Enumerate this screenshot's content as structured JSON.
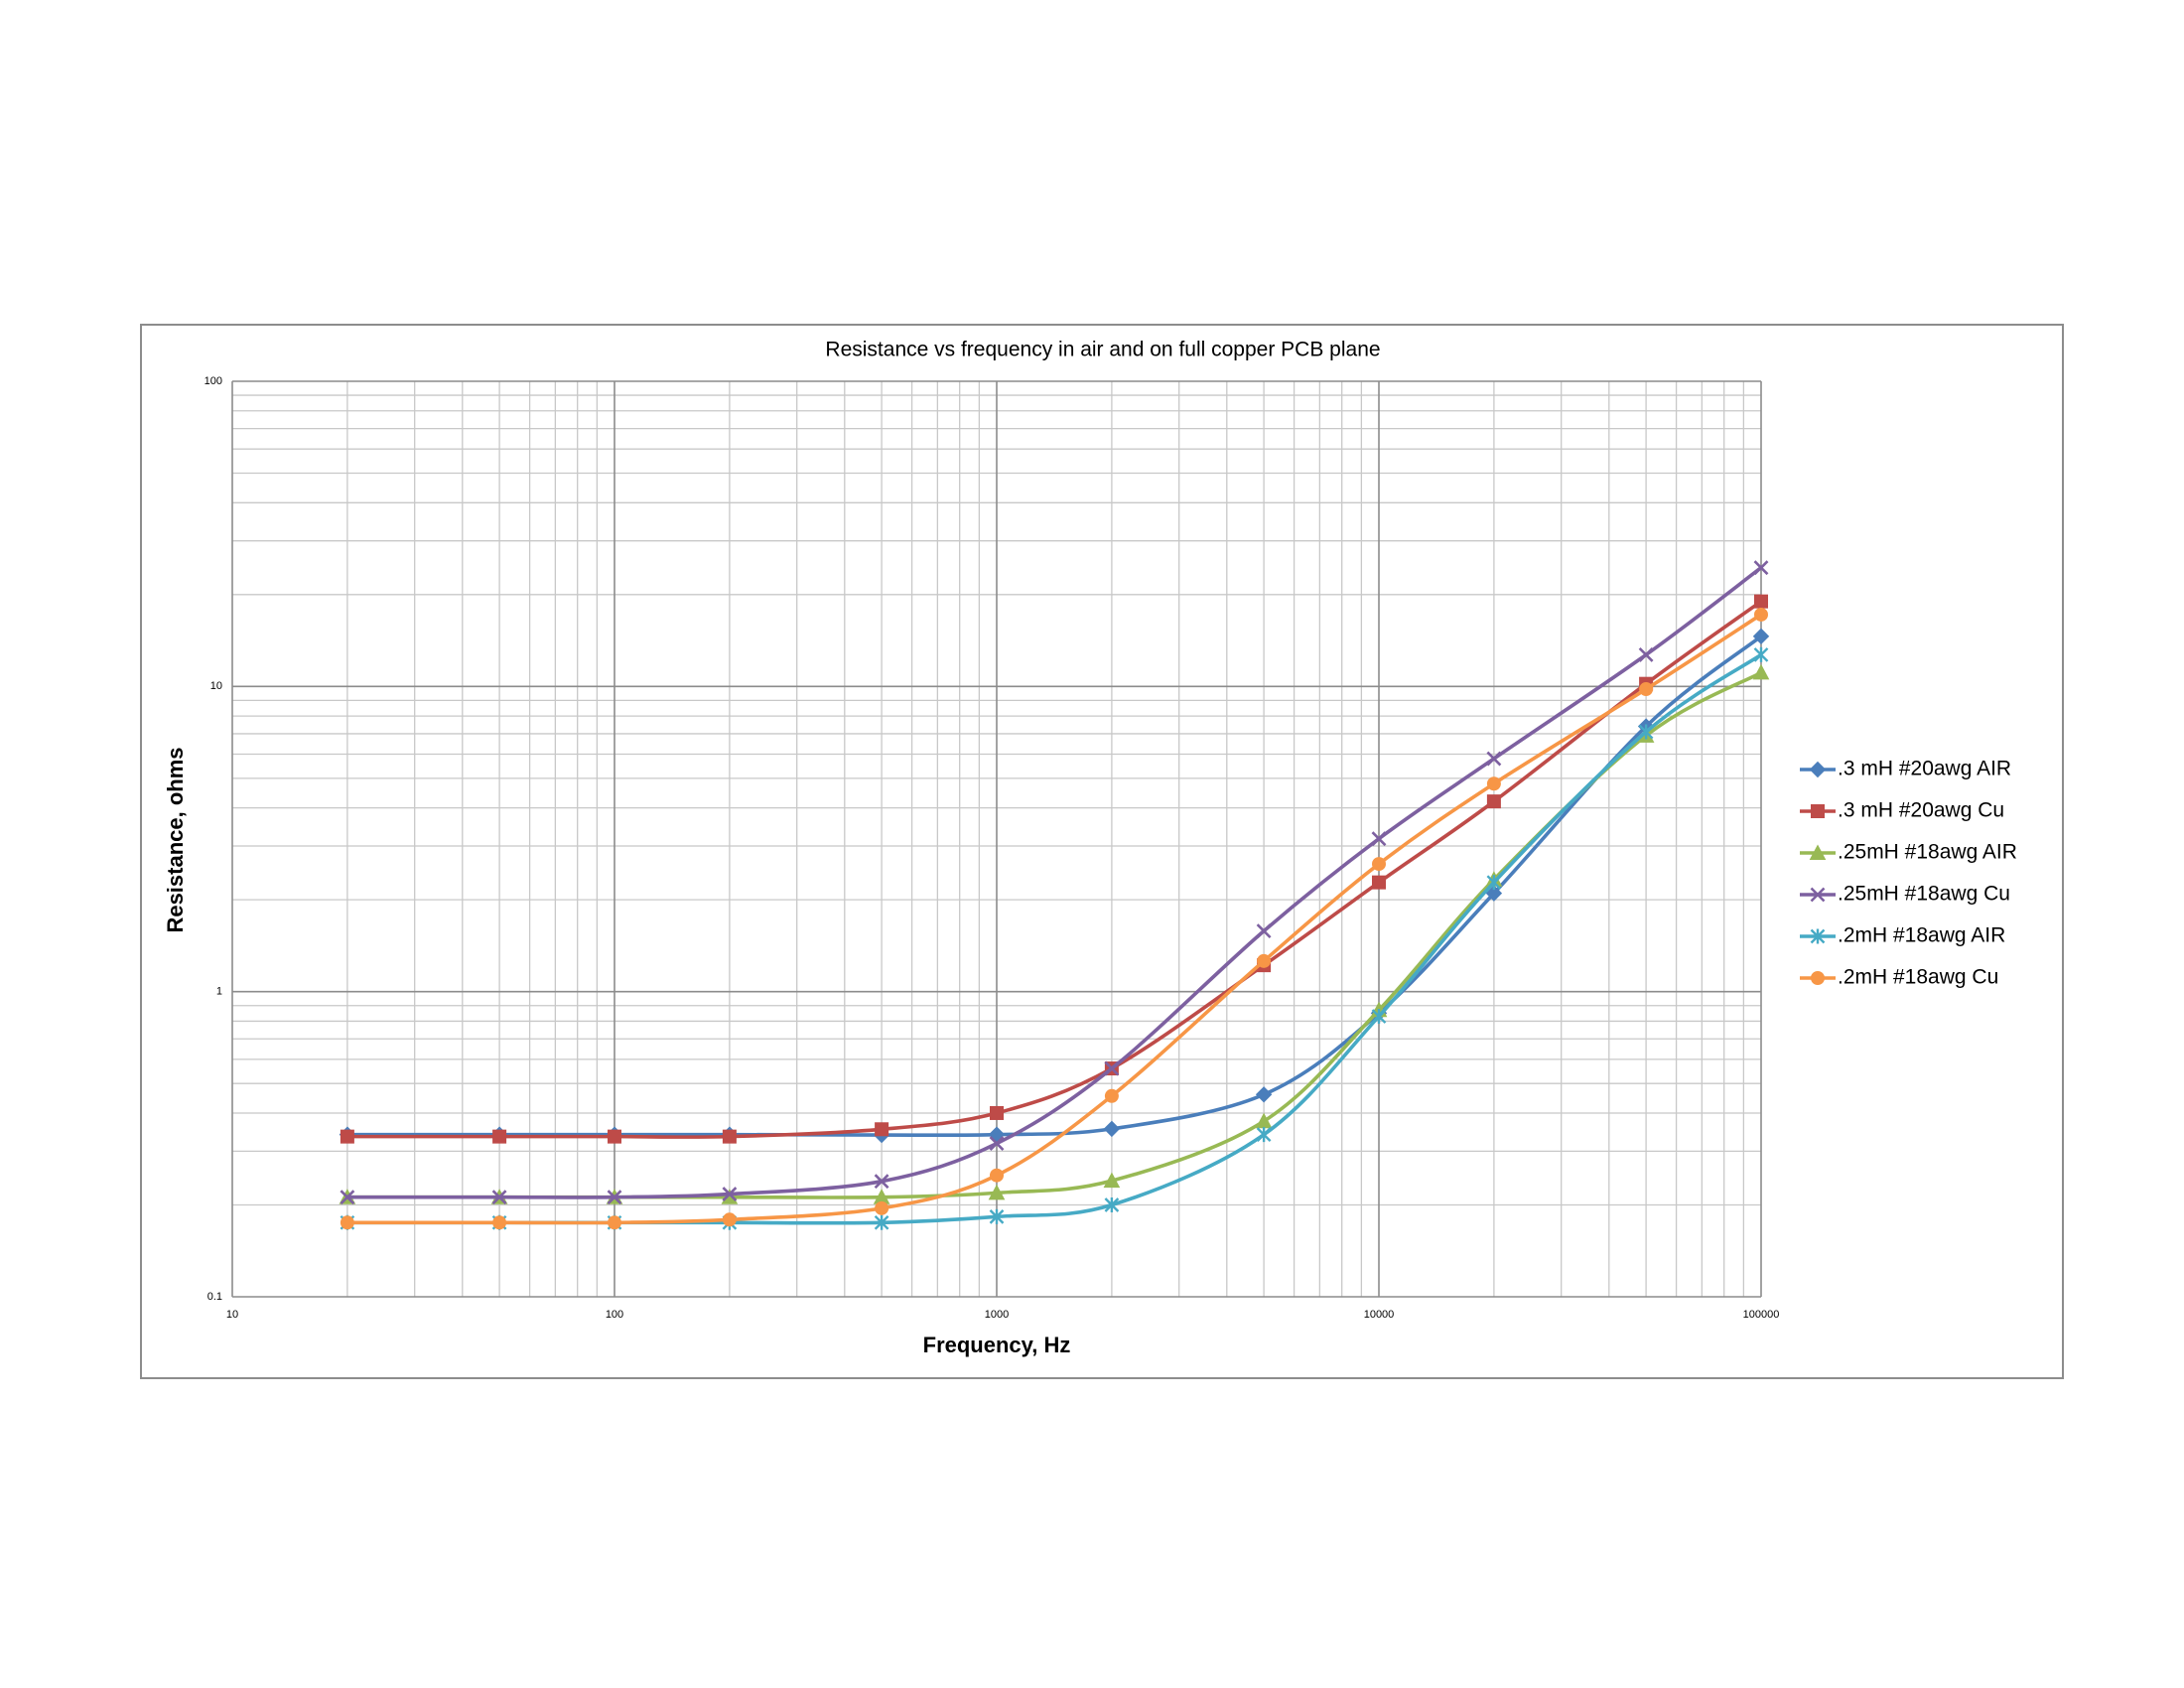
{
  "chart_data": {
    "type": "line",
    "title": "Resistance vs frequency in air and on full copper PCB plane",
    "x_label": "Frequency, Hz",
    "y_label": "Resistance, ohms",
    "x_scale": "log",
    "y_scale": "log",
    "grid": true,
    "minor_grid": true,
    "smooth": true,
    "legend": "right",
    "xlim": [
      10,
      100000
    ],
    "xticks": [
      10,
      100,
      1000,
      10000,
      100000
    ],
    "ylim": [
      0.1,
      100
    ],
    "yticks": [
      0.1,
      1,
      10,
      100
    ],
    "x": [
      20,
      50,
      100,
      200,
      500,
      1000,
      2000,
      5000,
      10000,
      20000,
      50000,
      100000
    ],
    "series": [
      {
        "name": ".3 mH #20awg AIR",
        "color": "#4a7ebb",
        "marker": "diamond",
        "values": [
          0.34,
          0.34,
          0.34,
          0.34,
          0.339,
          0.34,
          0.355,
          0.46,
          0.85,
          2.1,
          7.4,
          14.6
        ]
      },
      {
        "name": ".3 mH #20awg Cu",
        "color": "#be4b48",
        "marker": "square",
        "values": [
          0.335,
          0.335,
          0.335,
          0.335,
          0.354,
          0.4,
          0.56,
          1.22,
          2.28,
          4.2,
          10.2,
          19.0
        ]
      },
      {
        "name": ".25mH #18awg AIR",
        "color": "#98b954",
        "marker": "triangle",
        "values": [
          0.212,
          0.212,
          0.212,
          0.212,
          0.212,
          0.219,
          0.24,
          0.376,
          0.87,
          2.33,
          6.9,
          11.1
        ]
      },
      {
        "name": ".25mH #18awg Cu",
        "color": "#7d60a0",
        "marker": "x",
        "values": [
          0.212,
          0.212,
          0.212,
          0.217,
          0.239,
          0.318,
          0.56,
          1.58,
          3.17,
          5.8,
          12.7,
          24.5
        ]
      },
      {
        "name": ".2mH #18awg AIR",
        "color": "#46aac5",
        "marker": "star",
        "values": [
          0.175,
          0.175,
          0.175,
          0.175,
          0.175,
          0.183,
          0.2,
          0.34,
          0.83,
          2.28,
          7.1,
          12.7
        ]
      },
      {
        "name": ".2mH #18awg Cu",
        "color": "#f79646",
        "marker": "circle",
        "values": [
          0.175,
          0.175,
          0.175,
          0.179,
          0.195,
          0.25,
          0.455,
          1.26,
          2.62,
          4.8,
          9.8,
          17.2
        ]
      }
    ]
  }
}
